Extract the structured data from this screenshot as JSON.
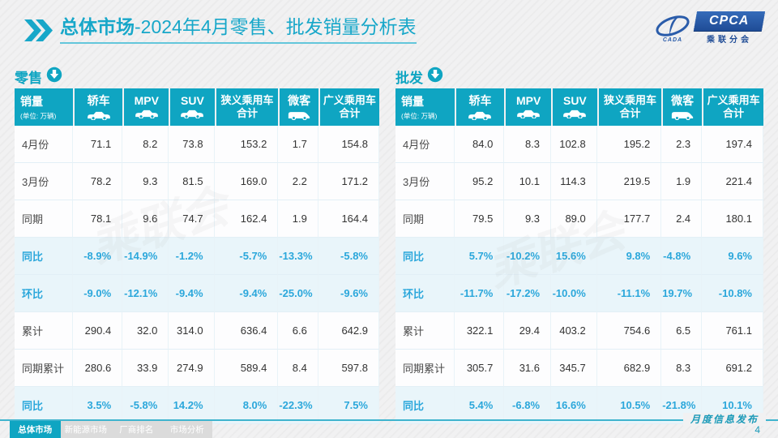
{
  "header": {
    "title_main": "总体市场",
    "title_rest": "-2024年4月零售、批发销量分析表",
    "logo": {
      "org_en": "CPCA",
      "org_sub": "乘联分会",
      "org_small": "CADA"
    }
  },
  "table_columns": {
    "first": {
      "title": "销量",
      "unit": "(单位: 万辆)"
    },
    "cols": [
      {
        "label": "轿车",
        "icon": "sedan-icon"
      },
      {
        "label": "MPV",
        "icon": "mpv-icon"
      },
      {
        "label": "SUV",
        "icon": "suv-icon"
      },
      {
        "line1": "狭义乘用车",
        "line2": "合计"
      },
      {
        "label": "微客",
        "icon": "van-icon"
      },
      {
        "line1": "广义乘用车",
        "line2": "合计"
      }
    ]
  },
  "tables": {
    "retail": {
      "section_label": "零售",
      "rows": [
        {
          "label": "4月份",
          "type": "normal",
          "values": [
            "71.1",
            "8.2",
            "73.8",
            "153.2",
            "1.7",
            "154.8"
          ]
        },
        {
          "label": "3月份",
          "type": "normal",
          "values": [
            "78.2",
            "9.3",
            "81.5",
            "169.0",
            "2.2",
            "171.2"
          ]
        },
        {
          "label": "同期",
          "type": "normal",
          "values": [
            "78.1",
            "9.6",
            "74.7",
            "162.4",
            "1.9",
            "164.4"
          ]
        },
        {
          "label": "同比",
          "type": "percent",
          "values": [
            "-8.9%",
            "-14.9%",
            "-1.2%",
            "-5.7%",
            "-13.3%",
            "-5.8%"
          ]
        },
        {
          "label": "环比",
          "type": "percent",
          "values": [
            "-9.0%",
            "-12.1%",
            "-9.4%",
            "-9.4%",
            "-25.0%",
            "-9.6%"
          ]
        },
        {
          "label": "累计",
          "type": "normal",
          "values": [
            "290.4",
            "32.0",
            "314.0",
            "636.4",
            "6.6",
            "642.9"
          ]
        },
        {
          "label": "同期累计",
          "type": "normal",
          "values": [
            "280.6",
            "33.9",
            "274.9",
            "589.4",
            "8.4",
            "597.8"
          ]
        },
        {
          "label": "同比",
          "type": "percent",
          "values": [
            "3.5%",
            "-5.8%",
            "14.2%",
            "8.0%",
            "-22.3%",
            "7.5%"
          ]
        }
      ]
    },
    "wholesale": {
      "section_label": "批发",
      "rows": [
        {
          "label": "4月份",
          "type": "normal",
          "values": [
            "84.0",
            "8.3",
            "102.8",
            "195.2",
            "2.3",
            "197.4"
          ]
        },
        {
          "label": "3月份",
          "type": "normal",
          "values": [
            "95.2",
            "10.1",
            "114.3",
            "219.5",
            "1.9",
            "221.4"
          ]
        },
        {
          "label": "同期",
          "type": "normal",
          "values": [
            "79.5",
            "9.3",
            "89.0",
            "177.7",
            "2.4",
            "180.1"
          ]
        },
        {
          "label": "同比",
          "type": "percent",
          "values": [
            "5.7%",
            "-10.2%",
            "15.6%",
            "9.8%",
            "-4.8%",
            "9.6%"
          ]
        },
        {
          "label": "环比",
          "type": "percent",
          "values": [
            "-11.7%",
            "-17.2%",
            "-10.0%",
            "-11.1%",
            "19.7%",
            "-10.8%"
          ]
        },
        {
          "label": "累计",
          "type": "normal",
          "values": [
            "322.1",
            "29.4",
            "403.2",
            "754.6",
            "6.5",
            "761.1"
          ]
        },
        {
          "label": "同期累计",
          "type": "normal",
          "values": [
            "305.7",
            "31.6",
            "345.7",
            "682.9",
            "8.3",
            "691.2"
          ]
        },
        {
          "label": "同比",
          "type": "percent",
          "values": [
            "5.4%",
            "-6.8%",
            "16.6%",
            "10.5%",
            "-21.8%",
            "10.1%"
          ]
        }
      ]
    }
  },
  "footer": {
    "tabs": [
      {
        "label": "总体市场",
        "active": true
      },
      {
        "label": "新能源市场",
        "active": false
      },
      {
        "label": "厂商排名",
        "active": false
      },
      {
        "label": "市场分析",
        "active": false
      }
    ],
    "publish_label": "月度信息发布",
    "page_number": "4"
  },
  "colors": {
    "accent_teal": "#0fa5c2",
    "percent_blue": "#2ba7db",
    "highlight_row_bg": "#e9f5fa",
    "logo_blue": "#1f4c96"
  }
}
